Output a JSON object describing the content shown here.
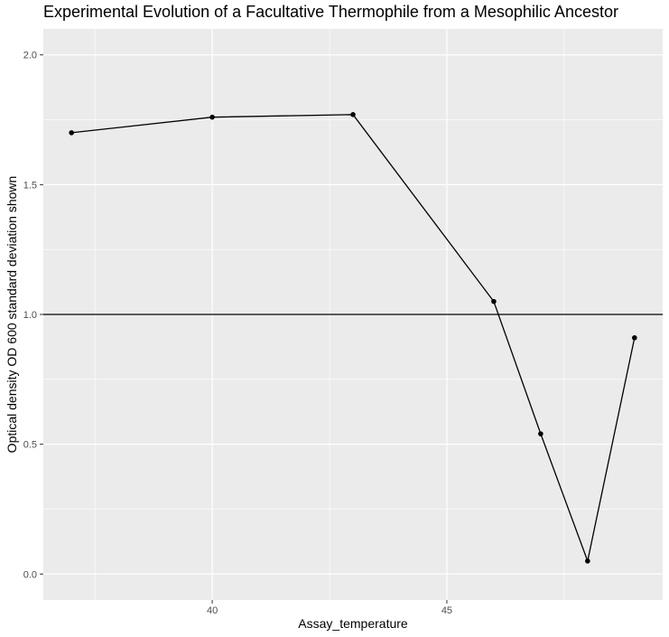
{
  "chart_data": {
    "type": "line",
    "title": "Experimental Evolution of a Facultative Thermophile from a Mesophilic Ancestor",
    "xlabel": "Assay_temperature",
    "ylabel_lines": [
      "Optical density OD 600",
      "standard deviation shown"
    ],
    "x_ticks": [
      40,
      45
    ],
    "y_ticks": [
      0.0,
      0.5,
      1.0,
      1.5,
      2.0
    ],
    "y_tick_labels": [
      "0.0",
      "0.5",
      "1.0",
      "1.5",
      "2.0"
    ],
    "x_minor_grid": [
      37.5,
      42.5,
      47.5
    ],
    "y_minor_grid": [
      0.25,
      0.75,
      1.25,
      1.75
    ],
    "xlim": [
      36.4,
      49.6
    ],
    "ylim": [
      -0.1,
      2.1
    ],
    "hline": 1.0,
    "series": [
      {
        "x": [
          37,
          40,
          43,
          46,
          47,
          48,
          49
        ],
        "y": [
          1.7,
          1.76,
          1.77,
          1.05,
          0.54,
          0.05,
          0.91
        ]
      }
    ],
    "grid": true,
    "panel_color": "#EBEBEB",
    "grid_color": "#FFFFFF",
    "line_color": "#000000"
  }
}
